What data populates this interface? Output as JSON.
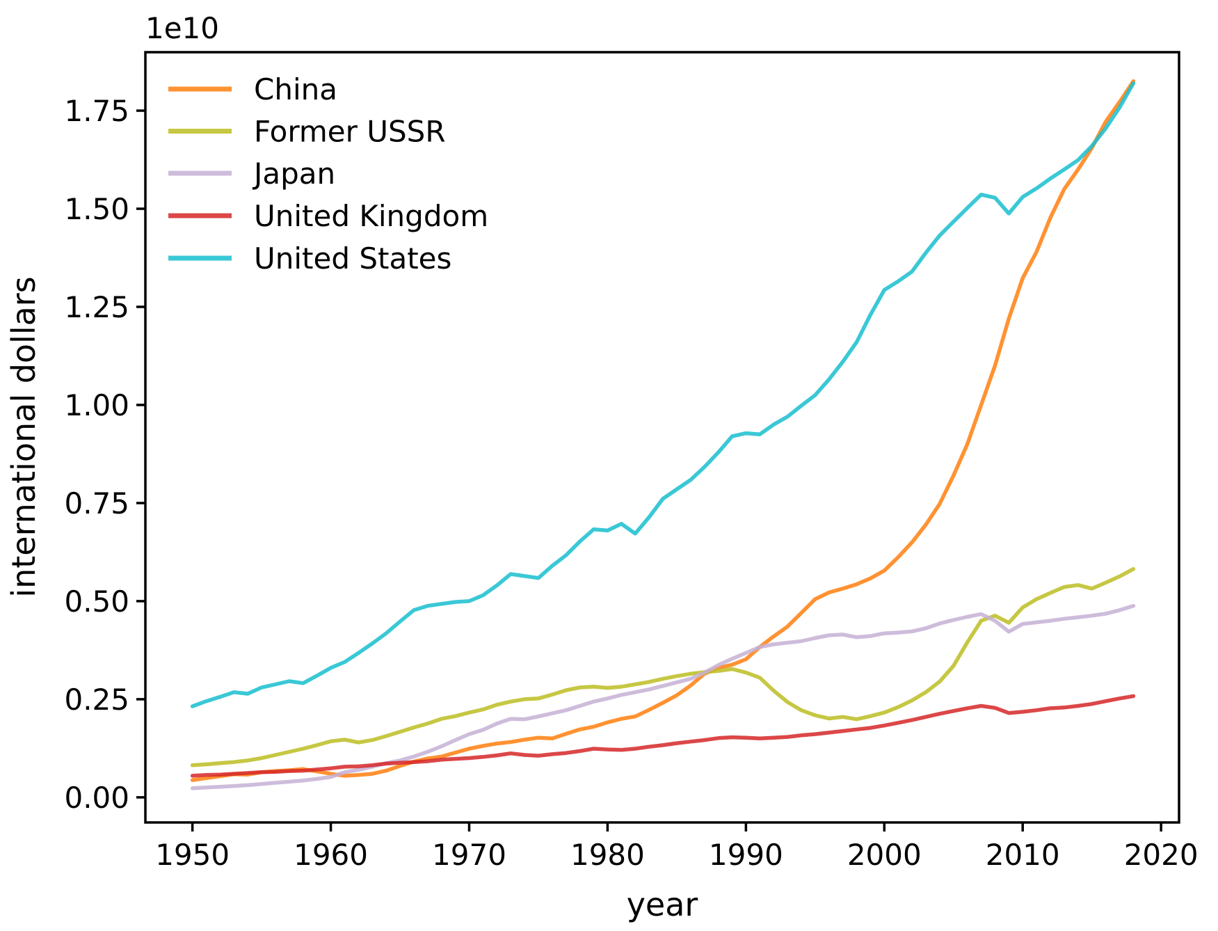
{
  "figure": {
    "background": "#ffffff",
    "axis_color": "#000000",
    "text_color": "#000000"
  },
  "chart_data": {
    "type": "line",
    "title": "",
    "xlabel": "year",
    "ylabel": "international dollars",
    "offset_text": "1e10",
    "value_scale": "1e10",
    "grid": false,
    "legend_position": "upper-left",
    "xlim": [
      1946.6,
      2021.3
    ],
    "ylim": [
      -0.064,
      1.899
    ],
    "xticks": [
      1950,
      1960,
      1970,
      1980,
      1990,
      2000,
      2010,
      2020
    ],
    "yticks": [
      0.0,
      0.25,
      0.5,
      0.75,
      1.0,
      1.25,
      1.5,
      1.75
    ],
    "line_opacity": 0.85,
    "x": [
      1950,
      1951,
      1952,
      1953,
      1954,
      1955,
      1956,
      1957,
      1958,
      1959,
      1960,
      1961,
      1962,
      1963,
      1964,
      1965,
      1966,
      1967,
      1968,
      1969,
      1970,
      1971,
      1972,
      1973,
      1974,
      1975,
      1976,
      1977,
      1978,
      1979,
      1980,
      1981,
      1982,
      1983,
      1984,
      1985,
      1986,
      1987,
      1988,
      1989,
      1990,
      1991,
      1992,
      1993,
      1994,
      1995,
      1996,
      1997,
      1998,
      1999,
      2000,
      2001,
      2002,
      2003,
      2004,
      2005,
      2006,
      2007,
      2008,
      2009,
      2010,
      2011,
      2012,
      2013,
      2014,
      2015,
      2016,
      2017,
      2018
    ],
    "series": [
      {
        "name": "China",
        "color": "#ff7f0e",
        "values": [
          0.044,
          0.049,
          0.054,
          0.059,
          0.058,
          0.064,
          0.067,
          0.069,
          0.072,
          0.066,
          0.06,
          0.055,
          0.057,
          0.06,
          0.068,
          0.08,
          0.091,
          0.099,
          0.104,
          0.114,
          0.124,
          0.131,
          0.137,
          0.141,
          0.147,
          0.152,
          0.15,
          0.162,
          0.173,
          0.18,
          0.191,
          0.2,
          0.206,
          0.223,
          0.241,
          0.26,
          0.285,
          0.315,
          0.33,
          0.338,
          0.352,
          0.383,
          0.41,
          0.435,
          0.47,
          0.505,
          0.522,
          0.532,
          0.543,
          0.558,
          0.578,
          0.612,
          0.65,
          0.695,
          0.748,
          0.82,
          0.9,
          1.0,
          1.1,
          1.22,
          1.323,
          1.39,
          1.477,
          1.55,
          1.6,
          1.655,
          1.722,
          1.772,
          1.825
        ]
      },
      {
        "name": "Former USSR",
        "color": "#bcbd22",
        "values": [
          0.082,
          0.084,
          0.087,
          0.09,
          0.094,
          0.1,
          0.108,
          0.116,
          0.124,
          0.133,
          0.143,
          0.147,
          0.14,
          0.146,
          0.156,
          0.167,
          0.178,
          0.188,
          0.2,
          0.207,
          0.216,
          0.224,
          0.236,
          0.244,
          0.25,
          0.252,
          0.262,
          0.273,
          0.28,
          0.282,
          0.279,
          0.282,
          0.288,
          0.294,
          0.302,
          0.309,
          0.315,
          0.319,
          0.322,
          0.327,
          0.318,
          0.305,
          0.272,
          0.243,
          0.222,
          0.209,
          0.201,
          0.205,
          0.199,
          0.207,
          0.216,
          0.23,
          0.247,
          0.268,
          0.295,
          0.335,
          0.395,
          0.45,
          0.463,
          0.445,
          0.484,
          0.505,
          0.521,
          0.536,
          0.541,
          0.532,
          0.547,
          0.563,
          0.582
        ]
      },
      {
        "name": "Japan",
        "color": "#c5b0d5",
        "values": [
          0.023,
          0.025,
          0.027,
          0.029,
          0.031,
          0.034,
          0.037,
          0.04,
          0.043,
          0.047,
          0.052,
          0.064,
          0.07,
          0.078,
          0.087,
          0.094,
          0.104,
          0.116,
          0.13,
          0.146,
          0.161,
          0.172,
          0.188,
          0.2,
          0.199,
          0.206,
          0.214,
          0.222,
          0.233,
          0.244,
          0.252,
          0.261,
          0.268,
          0.275,
          0.284,
          0.293,
          0.302,
          0.318,
          0.337,
          0.353,
          0.368,
          0.383,
          0.39,
          0.394,
          0.398,
          0.406,
          0.413,
          0.415,
          0.408,
          0.411,
          0.418,
          0.42,
          0.423,
          0.431,
          0.443,
          0.452,
          0.46,
          0.467,
          0.45,
          0.422,
          0.442,
          0.446,
          0.45,
          0.455,
          0.459,
          0.463,
          0.468,
          0.477,
          0.488
        ]
      },
      {
        "name": "United Kingdom",
        "color": "#d62728",
        "values": [
          0.055,
          0.057,
          0.058,
          0.06,
          0.062,
          0.064,
          0.065,
          0.067,
          0.068,
          0.071,
          0.074,
          0.078,
          0.079,
          0.082,
          0.086,
          0.088,
          0.09,
          0.092,
          0.096,
          0.098,
          0.1,
          0.103,
          0.107,
          0.112,
          0.108,
          0.106,
          0.11,
          0.113,
          0.118,
          0.124,
          0.122,
          0.121,
          0.124,
          0.129,
          0.133,
          0.138,
          0.142,
          0.146,
          0.151,
          0.153,
          0.152,
          0.15,
          0.152,
          0.154,
          0.158,
          0.161,
          0.165,
          0.169,
          0.173,
          0.177,
          0.183,
          0.19,
          0.197,
          0.205,
          0.213,
          0.22,
          0.227,
          0.233,
          0.228,
          0.215,
          0.218,
          0.222,
          0.227,
          0.229,
          0.233,
          0.238,
          0.245,
          0.252,
          0.258
        ]
      },
      {
        "name": "United States",
        "color": "#17becf",
        "values": [
          0.232,
          0.245,
          0.256,
          0.268,
          0.264,
          0.28,
          0.288,
          0.296,
          0.291,
          0.31,
          0.33,
          0.345,
          0.368,
          0.392,
          0.418,
          0.448,
          0.477,
          0.488,
          0.493,
          0.498,
          0.5,
          0.515,
          0.54,
          0.569,
          0.564,
          0.559,
          0.59,
          0.617,
          0.652,
          0.683,
          0.68,
          0.697,
          0.672,
          0.714,
          0.761,
          0.785,
          0.809,
          0.842,
          0.879,
          0.92,
          0.928,
          0.925,
          0.95,
          0.97,
          0.998,
          1.025,
          1.065,
          1.11,
          1.16,
          1.23,
          1.293,
          1.315,
          1.34,
          1.388,
          1.432,
          1.467,
          1.502,
          1.536,
          1.528,
          1.488,
          1.53,
          1.552,
          1.577,
          1.6,
          1.624,
          1.66,
          1.705,
          1.758,
          1.82
        ]
      }
    ]
  }
}
